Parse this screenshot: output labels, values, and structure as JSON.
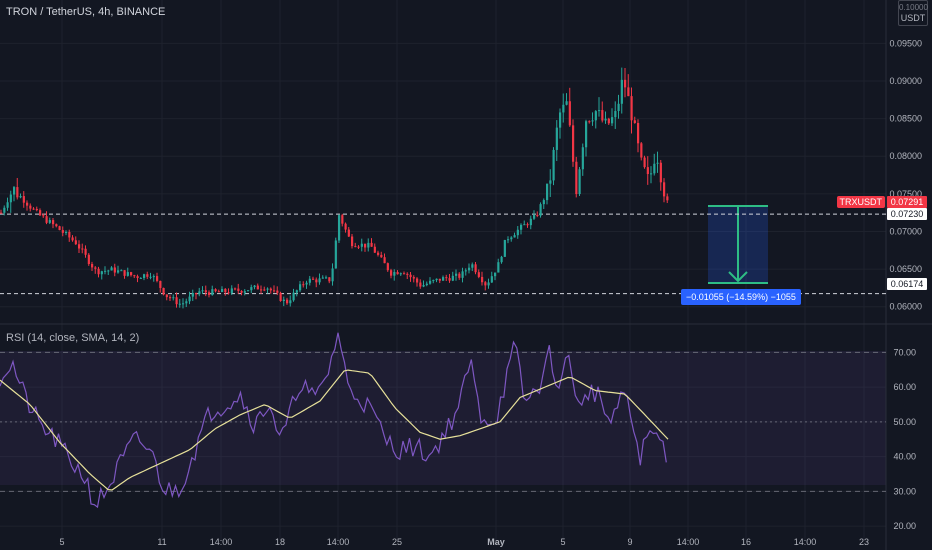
{
  "header": {
    "title": "TRON / TetherUS, 4h, BINANCE",
    "currency": "USDT"
  },
  "price_labels": {
    "symbol": "TRXUSDT",
    "last": "0.07291",
    "line_upper": "0.07230",
    "line_lower": "0.06174"
  },
  "measure": {
    "text": "−0.01055 (−14.59%) −1055"
  },
  "rsi_panel": {
    "title": "RSI (14, close, SMA, 14, 2)"
  },
  "colors": {
    "up": "#26a69a",
    "down": "#f23645",
    "rsi": "#7e57c2",
    "rsi_ma": "#e7e19a",
    "band": "#7e57c2",
    "measure": "#2962ff"
  },
  "chart_data": [
    {
      "type": "candlestick",
      "title": "TRON / TetherUS, 4h, BINANCE",
      "y_ticks": [
        "0.06000",
        "0.06500",
        "0.07000",
        "0.07500",
        "0.08000",
        "0.08500",
        "0.09000",
        "0.09500"
      ],
      "y_top_label": "0.10000",
      "ylim": [
        0.0585,
        0.1005
      ],
      "x_ticks": [
        "5",
        "11",
        "14:00",
        "18",
        "14:00",
        "25",
        "May",
        "5",
        "9",
        "14:00",
        "16",
        "14:00",
        "23"
      ],
      "hlines": [
        0.0723,
        0.06174
      ],
      "close_anchors": [
        [
          0,
          0.0725
        ],
        [
          12,
          0.0757
        ],
        [
          35,
          0.0725
        ],
        [
          55,
          0.0706
        ],
        [
          75,
          0.0685
        ],
        [
          95,
          0.0647
        ],
        [
          112,
          0.0649
        ],
        [
          135,
          0.064
        ],
        [
          150,
          0.0644
        ],
        [
          165,
          0.0615
        ],
        [
          180,
          0.0603
        ],
        [
          198,
          0.062
        ],
        [
          215,
          0.0619
        ],
        [
          240,
          0.0622
        ],
        [
          265,
          0.0627
        ],
        [
          285,
          0.0605
        ],
        [
          305,
          0.0635
        ],
        [
          330,
          0.0636
        ],
        [
          338,
          0.0722
        ],
        [
          350,
          0.0685
        ],
        [
          370,
          0.068
        ],
        [
          390,
          0.0645
        ],
        [
          402,
          0.0648
        ],
        [
          420,
          0.0628
        ],
        [
          440,
          0.0637
        ],
        [
          460,
          0.0641
        ],
        [
          470,
          0.0658
        ],
        [
          485,
          0.0629
        ],
        [
          497,
          0.0655
        ],
        [
          505,
          0.069
        ],
        [
          520,
          0.0705
        ],
        [
          535,
          0.072
        ],
        [
          548,
          0.076
        ],
        [
          558,
          0.0855
        ],
        [
          566,
          0.087
        ],
        [
          575,
          0.0755
        ],
        [
          585,
          0.085
        ],
        [
          595,
          0.086
        ],
        [
          605,
          0.084
        ],
        [
          615,
          0.0855
        ],
        [
          622,
          0.0905
        ],
        [
          630,
          0.086
        ],
        [
          640,
          0.079
        ],
        [
          648,
          0.0765
        ],
        [
          655,
          0.081
        ],
        [
          662,
          0.076
        ],
        [
          668,
          0.0729
        ]
      ]
    },
    {
      "type": "line",
      "title": "RSI (14, close, SMA, 14, 2)",
      "y_ticks": [
        "20.00",
        "30.00",
        "40.00",
        "50.00",
        "60.00",
        "70.00"
      ],
      "ylim": [
        16,
        77
      ],
      "series": [
        {
          "values_anchor": [
            [
              0,
              63
            ],
            [
              12,
              67
            ],
            [
              25,
              57
            ],
            [
              40,
              49
            ],
            [
              55,
              45
            ],
            [
              70,
              39
            ],
            [
              85,
              34
            ],
            [
              95,
              26
            ],
            [
              108,
              31
            ],
            [
              120,
              38
            ],
            [
              135,
              45
            ],
            [
              150,
              42
            ],
            [
              165,
              30
            ],
            [
              180,
              31
            ],
            [
              195,
              42
            ],
            [
              210,
              53
            ],
            [
              225,
              55
            ],
            [
              240,
              58
            ],
            [
              255,
              49
            ],
            [
              270,
              56
            ],
            [
              280,
              44
            ],
            [
              290,
              52
            ],
            [
              300,
              62
            ],
            [
              315,
              56
            ],
            [
              330,
              66
            ],
            [
              338,
              76
            ],
            [
              348,
              60
            ],
            [
              360,
              57
            ],
            [
              372,
              53
            ],
            [
              385,
              45
            ],
            [
              400,
              42
            ],
            [
              415,
              43
            ],
            [
              430,
              40
            ],
            [
              445,
              47
            ],
            [
              460,
              55
            ],
            [
              470,
              68
            ],
            [
              480,
              52
            ],
            [
              495,
              50
            ],
            [
              505,
              61
            ],
            [
              515,
              72
            ],
            [
              525,
              55
            ],
            [
              540,
              61
            ],
            [
              550,
              70
            ],
            [
              560,
              58
            ],
            [
              568,
              71
            ],
            [
              580,
              52
            ],
            [
              590,
              60
            ],
            [
              600,
              57
            ],
            [
              612,
              48
            ],
            [
              622,
              60
            ],
            [
              632,
              50
            ],
            [
              640,
              40
            ],
            [
              650,
              47
            ],
            [
              660,
              45
            ],
            [
              668,
              40
            ]
          ]
        },
        {
          "values_anchor": [
            [
              0,
              62
            ],
            [
              30,
              55
            ],
            [
              60,
              44
            ],
            [
              90,
              35
            ],
            [
              110,
              30
            ],
            [
              130,
              34
            ],
            [
              160,
              38
            ],
            [
              190,
              42
            ],
            [
              215,
              48
            ],
            [
              240,
              52
            ],
            [
              265,
              55
            ],
            [
              290,
              51
            ],
            [
              320,
              56
            ],
            [
              345,
              65
            ],
            [
              370,
              64
            ],
            [
              395,
              54
            ],
            [
              420,
              47
            ],
            [
              440,
              45
            ],
            [
              460,
              46
            ],
            [
              480,
              48
            ],
            [
              500,
              50
            ],
            [
              520,
              57
            ],
            [
              545,
              60
            ],
            [
              570,
              63
            ],
            [
              595,
              59
            ],
            [
              625,
              58
            ],
            [
              645,
              52
            ],
            [
              668,
              45
            ]
          ]
        }
      ]
    }
  ]
}
